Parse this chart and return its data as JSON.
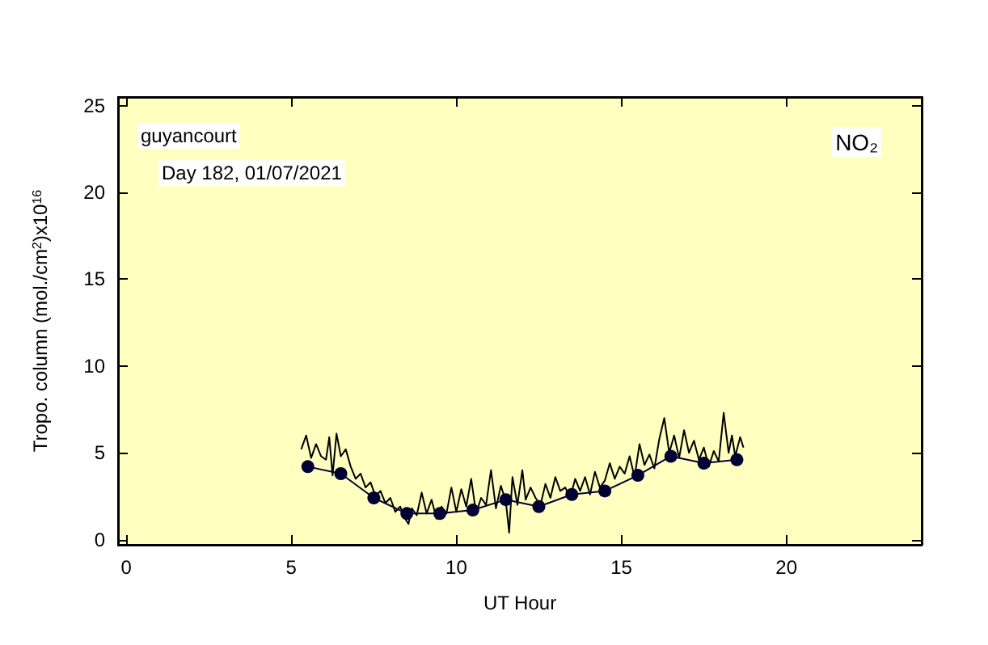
{
  "chart_data": {
    "type": "line",
    "xlabel": "UT Hour",
    "ylabel": "Tropo. column (mol./cm$^{2}$)x10$^{16}$",
    "annotations": [
      "guyancourt",
      "Day 182, 01/07/2021",
      "NO₂"
    ],
    "xlim": [
      -0.25,
      24.1
    ],
    "xticks": [
      0,
      5,
      10,
      15,
      20
    ],
    "ylim": [
      -0.3,
      25.5
    ],
    "yticks": [
      0,
      5,
      10,
      15,
      20,
      25
    ],
    "grid": false,
    "series": [
      {
        "color": "#000000",
        "marker": "none",
        "x": [
          5.3,
          5.45,
          5.6,
          5.75,
          5.9,
          6.05,
          6.15,
          6.25,
          6.37,
          6.5,
          6.65,
          6.8,
          6.95,
          7.1,
          7.25,
          7.4,
          7.55,
          7.7,
          7.85,
          8.0,
          8.15,
          8.3,
          8.45,
          8.55,
          8.65,
          8.8,
          8.95,
          9.1,
          9.25,
          9.4,
          9.55,
          9.7,
          9.85,
          10.0,
          10.15,
          10.3,
          10.45,
          10.6,
          10.75,
          10.9,
          11.05,
          11.2,
          11.35,
          11.5,
          11.6,
          11.7,
          11.85,
          12.0,
          12.1,
          12.25,
          12.4,
          12.55,
          12.7,
          12.85,
          13.0,
          13.15,
          13.3,
          13.45,
          13.6,
          13.75,
          13.9,
          14.05,
          14.2,
          14.35,
          14.5,
          14.65,
          14.8,
          14.95,
          15.1,
          15.25,
          15.4,
          15.55,
          15.7,
          15.85,
          16.0,
          16.15,
          16.3,
          16.45,
          16.6,
          16.75,
          16.9,
          17.05,
          17.2,
          17.35,
          17.5,
          17.65,
          17.8,
          17.95,
          18.1,
          18.25,
          18.35,
          18.45,
          18.6,
          18.7
        ],
        "values": [
          5.2,
          6.0,
          4.7,
          5.5,
          4.8,
          4.6,
          5.9,
          3.7,
          6.1,
          4.8,
          5.2,
          4.2,
          3.5,
          3.8,
          3.0,
          3.3,
          2.5,
          2.8,
          2.1,
          2.4,
          1.6,
          1.9,
          1.2,
          0.9,
          1.8,
          1.4,
          2.7,
          1.5,
          2.3,
          1.2,
          1.9,
          1.5,
          3.0,
          1.6,
          2.9,
          1.9,
          3.5,
          1.5,
          2.4,
          2.0,
          4.0,
          1.8,
          3.1,
          2.2,
          0.4,
          3.6,
          2.0,
          4.0,
          2.3,
          3.0,
          2.4,
          2.0,
          3.2,
          2.4,
          3.6,
          2.8,
          3.0,
          2.4,
          3.5,
          2.8,
          3.6,
          2.6,
          3.9,
          3.0,
          3.4,
          4.4,
          3.5,
          4.2,
          3.8,
          4.8,
          3.6,
          5.5,
          4.3,
          4.9,
          4.1,
          5.8,
          7.0,
          5.0,
          6.0,
          4.7,
          6.3,
          5.0,
          5.7,
          4.6,
          5.3,
          4.2,
          5.1,
          4.5,
          7.3,
          5.0,
          6.0,
          4.8,
          5.9,
          5.3
        ]
      },
      {
        "color": "#000033",
        "marker": "circle",
        "x": [
          5.5,
          6.5,
          7.5,
          8.5,
          9.5,
          10.5,
          11.5,
          12.5,
          13.5,
          14.5,
          15.5,
          16.5,
          17.5,
          18.5
        ],
        "values": [
          4.2,
          3.8,
          2.4,
          1.5,
          1.5,
          1.7,
          2.3,
          1.9,
          2.6,
          2.8,
          3.7,
          4.8,
          4.4,
          4.6
        ]
      }
    ]
  }
}
